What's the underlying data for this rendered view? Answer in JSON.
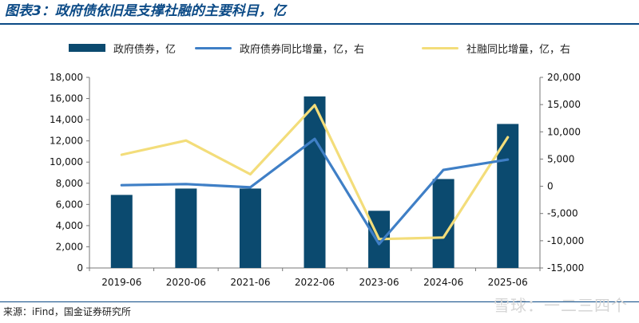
{
  "header": {
    "title": "图表3：政府债依旧是支撑社融的主要科目，亿"
  },
  "footer": {
    "source": "来源：iFind，国金证券研究所",
    "watermark": "雪球：一二三四个"
  },
  "colors": {
    "bar": "#0b4a6f",
    "line_blue": "#3f7fc6",
    "line_yellow": "#f3dd7a",
    "title": "#0b4a86"
  },
  "chart_data": {
    "type": "bar+line",
    "categories": [
      "2019-06",
      "2020-06",
      "2021-06",
      "2022-06",
      "2023-06",
      "2024-06",
      "2025-06"
    ],
    "series": [
      {
        "name": "政府债券，亿",
        "type": "bar",
        "axis": "left",
        "values": [
          6900,
          7500,
          7500,
          16200,
          5400,
          8400,
          13600
        ]
      },
      {
        "name": "政府债券同比增量，亿，右",
        "type": "line",
        "axis": "right",
        "values": [
          200,
          400,
          -200,
          8700,
          -10600,
          3000,
          4900
        ]
      },
      {
        "name": "社融同比增量，亿，右",
        "type": "line",
        "axis": "right",
        "values": [
          5800,
          8400,
          2200,
          14900,
          -9700,
          -9400,
          9000
        ]
      }
    ],
    "left_axis": {
      "ylim": [
        0,
        18000
      ],
      "ticks": [
        "0",
        "2,000",
        "4,000",
        "6,000",
        "8,000",
        "10,000",
        "12,000",
        "14,000",
        "16,000",
        "18,000"
      ]
    },
    "right_axis": {
      "ylim": [
        -15000,
        20000
      ],
      "ticks": [
        "-15,000",
        "-10,000",
        "-5,000",
        "0",
        "5,000",
        "10,000",
        "15,000",
        "20,000"
      ]
    },
    "grid": false,
    "legend_position": "top"
  }
}
